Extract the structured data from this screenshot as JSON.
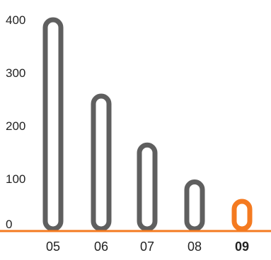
{
  "chart_data": {
    "type": "bar",
    "categories": [
      "05",
      "06",
      "07",
      "08",
      "09"
    ],
    "values": [
      400,
      255,
      162,
      92,
      55
    ],
    "highlighted_category": "09",
    "yticks": [
      "0",
      "100",
      "200",
      "300",
      "400"
    ],
    "ylim": [
      0,
      400
    ],
    "grid": false,
    "legend": "none",
    "colors": {
      "bar": "#5f5f5f",
      "highlight": "#f47a20",
      "baseline": "#f47a20",
      "text": "#222222"
    }
  }
}
